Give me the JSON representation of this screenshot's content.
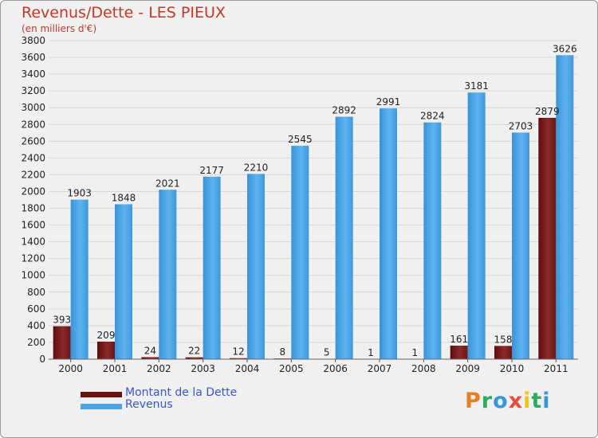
{
  "title": "Revenus/Dette - LES PIEUX",
  "subtitle": "(en milliers d'€)",
  "brand": {
    "text": "Proxiti",
    "letter_colors": [
      "#e67e22",
      "#27ae60",
      "#3498db",
      "#e74c3c",
      "#f1c40f",
      "#27ae60",
      "#3498db"
    ]
  },
  "chart_data": {
    "type": "bar",
    "categories": [
      "2000",
      "2001",
      "2002",
      "2003",
      "2004",
      "2005",
      "2006",
      "2007",
      "2008",
      "2009",
      "2010",
      "2011"
    ],
    "series": [
      {
        "name": "Montant de la Dette",
        "values": [
          393,
          209,
          24,
          22,
          12,
          8,
          5,
          1,
          1,
          161,
          158,
          2879
        ],
        "color": "#7a1a1a"
      },
      {
        "name": "Revenus",
        "values": [
          1903,
          1848,
          2021,
          2177,
          2210,
          2545,
          2892,
          2991,
          2824,
          3181,
          2703,
          3626
        ],
        "color": "#4aa3e6"
      }
    ],
    "title": "Revenus/Dette - LES PIEUX",
    "ylabel": "(en milliers d'€)",
    "ylim": [
      0,
      3800
    ],
    "ytick_step": 200,
    "grid": true,
    "legend": "bottom-left"
  }
}
